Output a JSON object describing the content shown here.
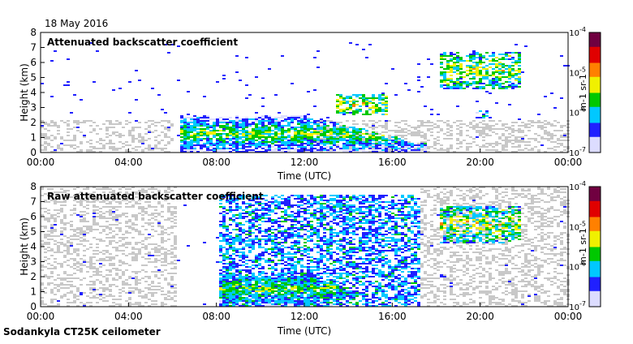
{
  "date": "18 May 2016",
  "footer": "Sodankyla CT25K ceilometer",
  "colors": {
    "scale": [
      "#dcdcff",
      "#2020ff",
      "#00c8ff",
      "#00c800",
      "#f0f000",
      "#ff8000",
      "#e00000",
      "#700040"
    ],
    "noise": "#c8c8c8",
    "border": "#000000"
  },
  "chart_data": [
    {
      "type": "heatmap",
      "title": "Attenuated backscatter coefficient",
      "xlabel": "Time (UTC)",
      "ylabel": "Height (km)",
      "x_ticks": [
        "00:00",
        "04:00",
        "08:00",
        "12:00",
        "16:00",
        "20:00",
        "00:00"
      ],
      "y_ticks": [
        "0",
        "1",
        "2",
        "3",
        "4",
        "5",
        "6",
        "7",
        "8"
      ],
      "xlim_hours": [
        0,
        24
      ],
      "ylim_km": [
        0,
        8
      ],
      "colorbar": {
        "label": "m-1 sr-1",
        "ticks": [
          "10",
          "10",
          "10",
          "10"
        ],
        "exponents": [
          "-7",
          "-6",
          "-5",
          "-4"
        ],
        "range_log10": [
          -7,
          -4
        ]
      },
      "features": [
        {
          "name": "boundary-layer",
          "t_start": 6.3,
          "t_end": 17.5,
          "z_top_km": 2.3,
          "peak_log10": -5.2
        },
        {
          "name": "cloud-layer-14h",
          "t_start": 13.4,
          "t_end": 15.7,
          "z_low_km": 2.5,
          "z_high_km": 4.0,
          "peak_log10": -5.0
        },
        {
          "name": "cloud-layer-18h",
          "t_start": 18.1,
          "t_end": 21.8,
          "z_low_km": 4.3,
          "z_high_km": 6.8,
          "peak_log10": -5.0
        },
        {
          "name": "cloud-layer-20h",
          "t_start": 19.7,
          "t_end": 20.3,
          "z_low_km": 2.3,
          "z_high_km": 2.9,
          "peak_log10": -5.6
        }
      ]
    },
    {
      "type": "heatmap",
      "title": "Raw attenuated backscatter coefficient",
      "xlabel": "Time (UTC)",
      "ylabel": "Height (km)",
      "x_ticks": [
        "00:00",
        "04:00",
        "08:00",
        "12:00",
        "16:00",
        "20:00",
        "00:00"
      ],
      "y_ticks": [
        "0",
        "1",
        "2",
        "3",
        "4",
        "5",
        "6",
        "7",
        "8"
      ],
      "xlim_hours": [
        0,
        24
      ],
      "ylim_km": [
        0,
        8
      ],
      "colorbar": {
        "label": "m-1 sr-1",
        "ticks": [
          "10",
          "10",
          "10",
          "10"
        ],
        "exponents": [
          "-7",
          "-6",
          "-5",
          "-4"
        ],
        "range_log10": [
          -7,
          -4
        ]
      },
      "features": [
        {
          "name": "noise-field",
          "t_start": 8.0,
          "t_end": 17.2,
          "z_top_km": 7.5
        },
        {
          "name": "boundary-layer",
          "t_start": 8.0,
          "t_end": 13.6,
          "z_top_km": 2.0,
          "peak_log10": -5.2
        },
        {
          "name": "cloud-layer-18h",
          "t_start": 18.1,
          "t_end": 21.8,
          "z_low_km": 4.3,
          "z_high_km": 6.8,
          "peak_log10": -5.0
        }
      ]
    }
  ]
}
